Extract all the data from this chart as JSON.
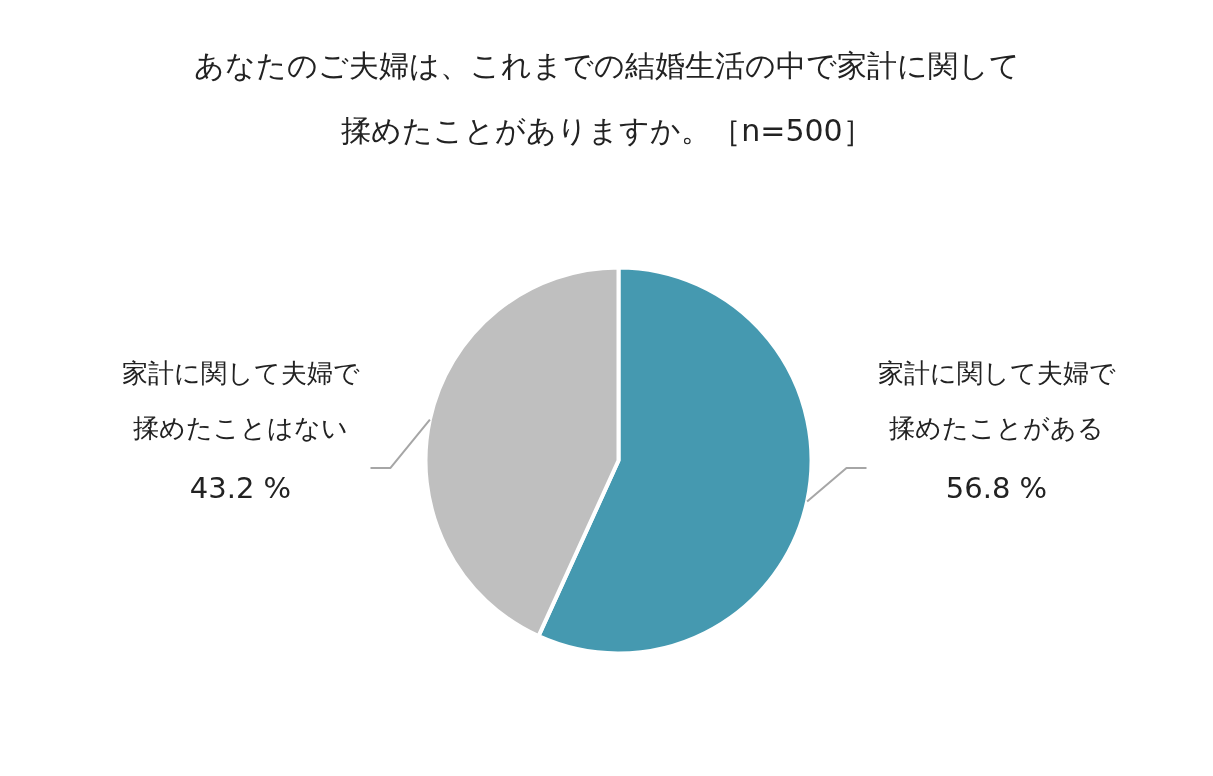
{
  "chart_data": {
    "type": "pie",
    "title": "あなたのご夫婦は、これまでの結婚生活の中で家計に関して揉めたことがありますか。［n=500］",
    "categories": [
      "家計に関して夫婦で揉めたことがある",
      "家計に関して夫婦で揉めたことはない"
    ],
    "values": [
      56.8,
      43.2
    ],
    "colors": [
      "#4599b0",
      "#bfbfbf"
    ],
    "value_labels": [
      "56.8 %",
      "43.2 %"
    ]
  }
}
